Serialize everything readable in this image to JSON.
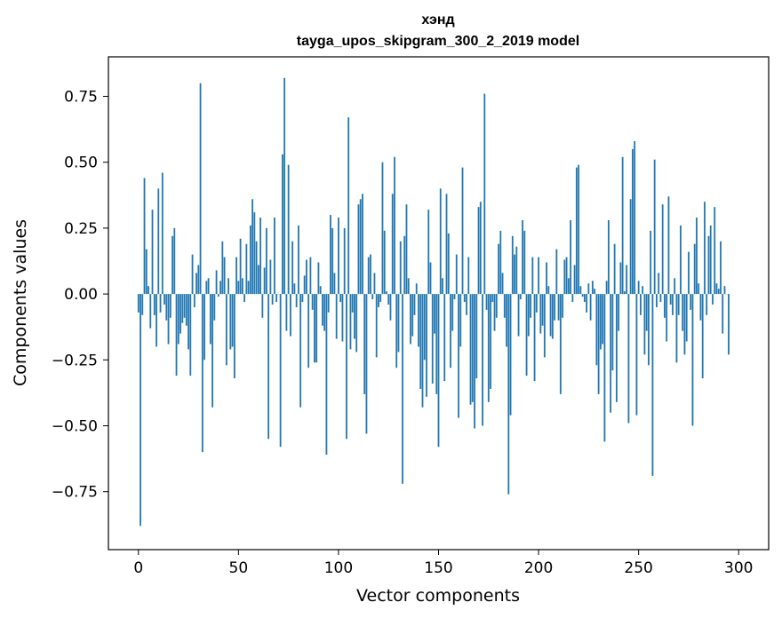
{
  "chart_data": {
    "type": "bar",
    "title": "хэнд",
    "subtitle": "tayga_upos_skipgram_300_2_2019 model",
    "xlabel": "Vector components",
    "ylabel": "Components values",
    "xlim": [
      -15,
      315
    ],
    "ylim": [
      -0.97,
      0.9
    ],
    "xticks": [
      0,
      50,
      100,
      150,
      200,
      250,
      300
    ],
    "xtick_labels": [
      "0",
      "50",
      "100",
      "150",
      "200",
      "250",
      "300"
    ],
    "yticks": [
      -0.75,
      -0.5,
      -0.25,
      0.0,
      0.25,
      0.5,
      0.75
    ],
    "ytick_labels": [
      "−0.75",
      "−0.50",
      "−0.25",
      "0.00",
      "0.25",
      "0.50",
      "0.75"
    ],
    "grid": false,
    "bar_color": "#1f77b4",
    "values": [
      -0.07,
      -0.88,
      -0.08,
      0.44,
      0.17,
      0.03,
      -0.13,
      0.32,
      -0.08,
      -0.2,
      0.4,
      -0.07,
      0.46,
      -0.04,
      -0.1,
      -0.19,
      -0.09,
      0.22,
      0.25,
      -0.31,
      -0.19,
      -0.15,
      -0.11,
      -0.09,
      -0.12,
      -0.21,
      -0.31,
      0.15,
      -0.05,
      0.08,
      0.11,
      0.8,
      -0.6,
      -0.25,
      0.05,
      0.06,
      -0.19,
      -0.43,
      -0.1,
      0.09,
      -0.01,
      0.05,
      0.2,
      0.14,
      -0.27,
      0.06,
      -0.21,
      -0.2,
      -0.32,
      0.14,
      0.05,
      0.21,
      0.06,
      -0.03,
      0.19,
      0.05,
      0.26,
      0.36,
      0.31,
      0.2,
      0.11,
      0.29,
      -0.09,
      0.1,
      0.25,
      -0.55,
      0.13,
      -0.04,
      0.29,
      -0.03,
      0.0,
      -0.58,
      0.53,
      0.82,
      -0.14,
      0.49,
      -0.16,
      0.2,
      0.04,
      -0.05,
      0.26,
      -0.43,
      -0.03,
      0.07,
      0.13,
      -0.28,
      0.14,
      -0.06,
      -0.26,
      -0.26,
      0.12,
      0.03,
      -0.12,
      -0.14,
      -0.61,
      -0.07,
      0.3,
      0.25,
      0.08,
      -0.17,
      0.29,
      -0.03,
      -0.18,
      0.25,
      -0.55,
      0.67,
      -0.21,
      -0.07,
      -0.17,
      -0.22,
      0.34,
      0.36,
      0.38,
      -0.38,
      -0.53,
      0.14,
      0.15,
      -0.02,
      0.08,
      -0.24,
      -0.05,
      -0.03,
      0.5,
      0.24,
      0.01,
      -0.04,
      -0.1,
      0.38,
      0.52,
      -0.28,
      -0.22,
      0.2,
      -0.72,
      0.22,
      0.34,
      0.06,
      -0.19,
      -0.16,
      -0.08,
      0.04,
      -0.2,
      -0.36,
      -0.43,
      -0.25,
      -0.39,
      0.32,
      0.12,
      -0.34,
      -0.15,
      -0.38,
      -0.58,
      0.4,
      0.06,
      -0.33,
      0.38,
      0.23,
      -0.28,
      -0.14,
      -0.02,
      0.15,
      -0.47,
      -0.2,
      0.48,
      -0.03,
      -0.08,
      0.14,
      -0.42,
      -0.41,
      -0.51,
      -0.32,
      0.33,
      0.35,
      -0.5,
      0.76,
      -0.06,
      -0.41,
      -0.36,
      -0.03,
      -0.14,
      -0.09,
      0.19,
      0.24,
      0.08,
      -0.09,
      -0.2,
      -0.76,
      -0.46,
      0.22,
      0.15,
      0.18,
      -0.16,
      -0.02,
      0.28,
      0.24,
      -0.31,
      -0.16,
      -0.09,
      0.14,
      -0.33,
      -0.07,
      0.14,
      -0.15,
      -0.12,
      -0.24,
      0.12,
      0.03,
      -0.16,
      -0.17,
      -0.1,
      0.17,
      -0.1,
      -0.38,
      -0.09,
      0.13,
      0.14,
      0.06,
      0.28,
      -0.03,
      0.11,
      0.48,
      0.49,
      0.03,
      -0.01,
      -0.03,
      -0.07,
      0.04,
      -0.1,
      0.05,
      0.02,
      -0.27,
      -0.38,
      -0.21,
      -0.19,
      -0.56,
      0.05,
      0.28,
      -0.45,
      -0.29,
      0.19,
      -0.41,
      -0.14,
      0.12,
      0.52,
      0.01,
      0.11,
      -0.49,
      0.36,
      0.55,
      0.58,
      -0.46,
      0.05,
      -0.08,
      0.03,
      -0.23,
      -0.14,
      -0.27,
      0.24,
      -0.69,
      0.51,
      -0.05,
      0.08,
      -0.03,
      0.34,
      -0.09,
      -0.18,
      0.37,
      -0.04,
      -0.08,
      0.06,
      -0.26,
      -0.08,
      0.26,
      -0.14,
      -0.23,
      -0.18,
      0.16,
      -0.06,
      -0.5,
      0.19,
      0.29,
      0.04,
      -0.1,
      -0.32,
      0.35,
      -0.08,
      0.22,
      0.26,
      -0.04,
      0.33,
      0.04,
      0.02,
      0.2,
      -0.15,
      0.03,
      0.0,
      -0.23
    ]
  }
}
